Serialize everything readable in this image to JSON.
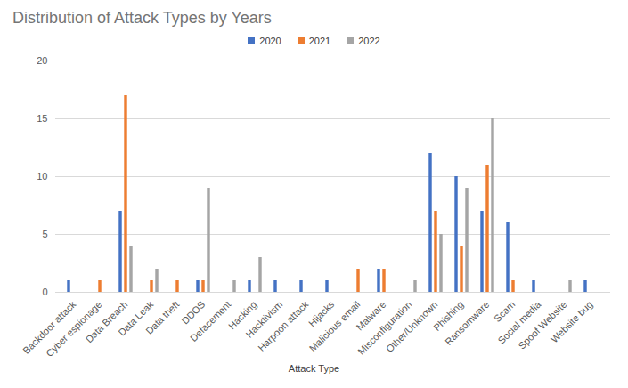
{
  "chart_data": {
    "type": "bar",
    "title": "Distribution of Attack Types by Years",
    "x_label": "Attack Type",
    "categories": [
      "Backdoor attack",
      "Cyber espionage",
      "Data Breach",
      "Data Leak",
      "Data theft",
      "DDOS",
      "Defacement",
      "Hacking",
      "Hacktivism",
      "Harpoon attack",
      "Hijacks",
      "Malicious email",
      "Malware",
      "Misconfiguration",
      "Other/Unknown",
      "Phishing",
      "Ransomware",
      "Scam",
      "Social media",
      "Spoof Website",
      "Website bug"
    ],
    "series": [
      {
        "name": "2020",
        "color": "#4472c4",
        "values": [
          1,
          0,
          7,
          0,
          0,
          1,
          0,
          1,
          1,
          1,
          1,
          0,
          2,
          0,
          12,
          10,
          7,
          6,
          1,
          0,
          1
        ]
      },
      {
        "name": "2021",
        "color": "#ed7d31",
        "values": [
          0,
          1,
          17,
          1,
          1,
          1,
          0,
          0,
          0,
          0,
          0,
          2,
          2,
          0,
          7,
          4,
          11,
          1,
          0,
          0,
          0
        ]
      },
      {
        "name": "2022",
        "color": "#a5a5a5",
        "values": [
          0,
          0,
          4,
          2,
          0,
          9,
          1,
          3,
          0,
          0,
          0,
          0,
          0,
          1,
          5,
          9,
          15,
          0,
          0,
          1,
          0
        ]
      }
    ],
    "ylim": [
      0,
      20
    ],
    "yticks": [
      0,
      5,
      10,
      15,
      20
    ],
    "grid": true,
    "legend": "top"
  }
}
